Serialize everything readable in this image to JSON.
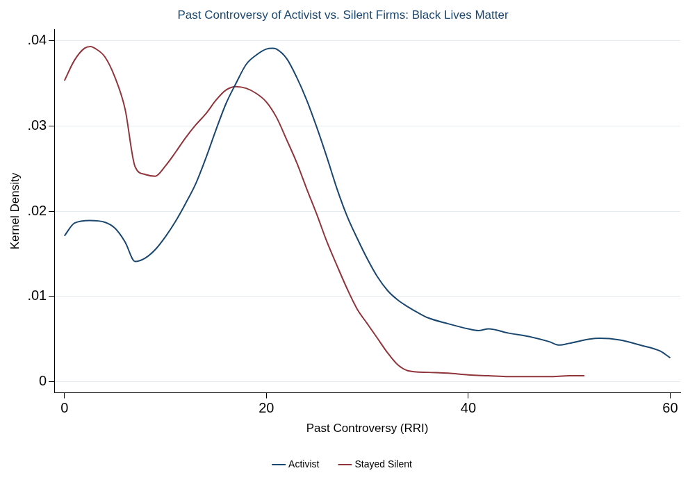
{
  "chart_data": {
    "type": "line",
    "title": "Past Controversy of Activist vs. Silent Firms: Black Lives Matter",
    "xlabel": "Past Controversy (RRI)",
    "ylabel": "Kernel Density",
    "xlim": [
      -1,
      61
    ],
    "xticks": [
      0,
      20,
      40,
      60
    ],
    "ylim": [
      -0.0013,
      0.0413
    ],
    "yticks": [
      {
        "value": 0,
        "label": "0"
      },
      {
        "value": 0.01,
        "label": ".01"
      },
      {
        "value": 0.02,
        "label": ".02"
      },
      {
        "value": 0.03,
        "label": ".03"
      },
      {
        "value": 0.04,
        "label": ".04"
      }
    ],
    "grid": "y",
    "legend": "bottom",
    "marker": "none",
    "line_style": "solid",
    "series": [
      {
        "name": "Activist",
        "color": "#1a476f",
        "x": [
          0,
          1,
          2.5,
          4,
          5,
          6,
          7,
          8,
          9,
          10,
          11,
          12,
          13,
          14,
          15,
          16,
          17,
          18,
          19,
          20,
          20.6,
          21,
          22,
          23,
          24,
          25,
          26,
          27,
          28,
          29,
          30,
          31,
          32,
          33,
          34,
          35,
          36,
          38,
          40,
          41,
          42,
          44,
          46,
          48,
          49,
          50,
          52,
          53,
          55,
          57,
          59,
          60
        ],
        "values": [
          0.0171,
          0.0186,
          0.0189,
          0.0187,
          0.018,
          0.0164,
          0.0141,
          0.0145,
          0.0155,
          0.017,
          0.0188,
          0.0209,
          0.0232,
          0.0262,
          0.0295,
          0.0326,
          0.035,
          0.0372,
          0.0383,
          0.039,
          0.0391,
          0.039,
          0.0379,
          0.0357,
          0.033,
          0.0298,
          0.0263,
          0.0226,
          0.0194,
          0.0168,
          0.0144,
          0.0123,
          0.0107,
          0.0096,
          0.0088,
          0.0081,
          0.0075,
          0.0068,
          0.0062,
          0.006,
          0.0062,
          0.0057,
          0.0053,
          0.0047,
          0.0043,
          0.0045,
          0.005,
          0.0051,
          0.0049,
          0.0043,
          0.0036,
          0.0028
        ]
      },
      {
        "name": "Stayed Silent",
        "color": "#90353b",
        "x": [
          0,
          1,
          2,
          2.6,
          3,
          4,
          5,
          6,
          7,
          8,
          9,
          10,
          11,
          12,
          13,
          14,
          15,
          16,
          17,
          18,
          19,
          20,
          21,
          22,
          23,
          24,
          25,
          26,
          27,
          28,
          29,
          30,
          31,
          32,
          33,
          34,
          36,
          38,
          40,
          42,
          44,
          46,
          48,
          50,
          51.5
        ],
        "values": [
          0.0353,
          0.0377,
          0.0391,
          0.0393,
          0.0391,
          0.0381,
          0.0357,
          0.032,
          0.0252,
          0.0243,
          0.0241,
          0.0253,
          0.0269,
          0.0286,
          0.0301,
          0.0314,
          0.033,
          0.0342,
          0.0346,
          0.0344,
          0.0338,
          0.0328,
          0.031,
          0.0284,
          0.0257,
          0.0226,
          0.0196,
          0.0164,
          0.0136,
          0.0109,
          0.0085,
          0.0068,
          0.0051,
          0.0034,
          0.002,
          0.0013,
          0.0011,
          0.001,
          0.0008,
          0.0007,
          0.0006,
          0.0006,
          0.0006,
          0.0007,
          0.0007
        ]
      }
    ]
  }
}
